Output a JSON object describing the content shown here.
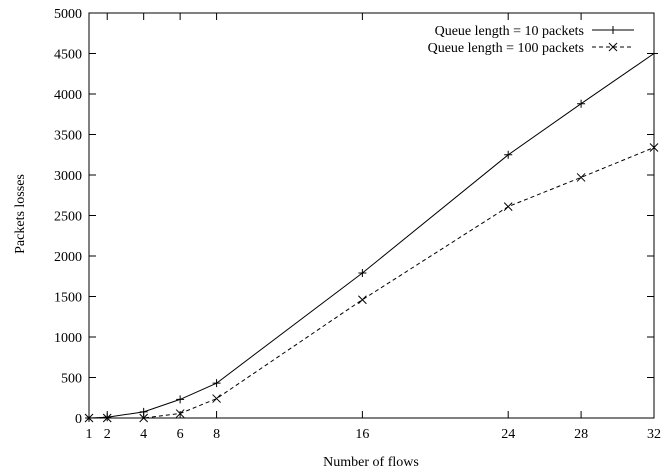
{
  "chart_data": {
    "type": "line",
    "title": "",
    "xlabel": "Number of flows",
    "ylabel": "Packets losses",
    "xlim": [
      1,
      32
    ],
    "ylim": [
      0,
      5000
    ],
    "xticks": [
      1,
      2,
      4,
      6,
      8,
      16,
      24,
      28,
      32
    ],
    "yticks": [
      0,
      500,
      1000,
      1500,
      2000,
      2500,
      3000,
      3500,
      4000,
      4500,
      5000
    ],
    "grid": false,
    "legend_position": "top-right",
    "series": [
      {
        "name": "Queue length = 10 packets",
        "marker": "plus",
        "line_style": "solid",
        "color": "#000000",
        "x": [
          1,
          2,
          4,
          6,
          8,
          16,
          24,
          28,
          32
        ],
        "y": [
          0,
          10,
          75,
          230,
          430,
          1790,
          3250,
          3880,
          4500
        ]
      },
      {
        "name": "Queue length = 100 packets",
        "marker": "cross",
        "line_style": "dashed",
        "color": "#000000",
        "x": [
          1,
          2,
          4,
          6,
          8,
          16,
          24,
          28,
          32
        ],
        "y": [
          0,
          0,
          0,
          55,
          240,
          1460,
          2610,
          2970,
          3340
        ]
      }
    ]
  }
}
